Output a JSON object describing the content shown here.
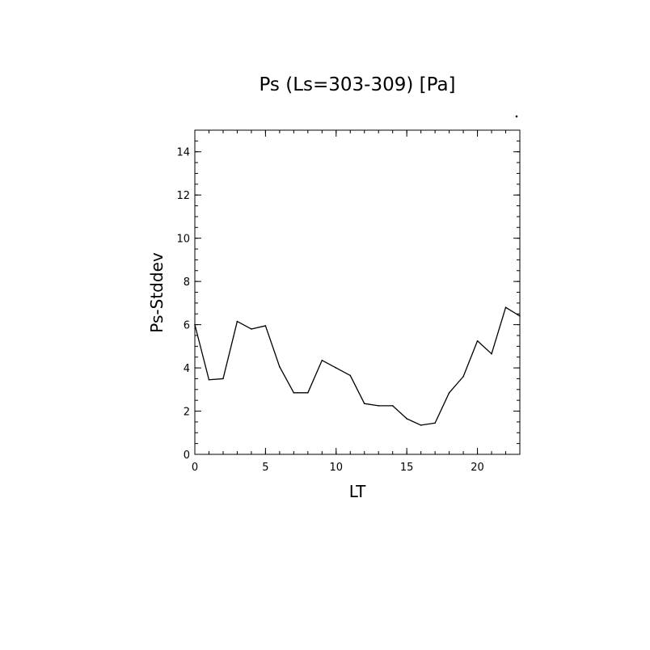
{
  "chart_data": {
    "type": "line",
    "title": "Ps (Ls=303-309) [Pa]",
    "xlabel": "LT",
    "ylabel": "Ps-Stddev",
    "xlim": [
      0,
      23
    ],
    "ylim": [
      0,
      15
    ],
    "x_ticks": [
      0,
      5,
      10,
      15,
      20
    ],
    "y_ticks": [
      0,
      2,
      4,
      6,
      8,
      10,
      12,
      14
    ],
    "x_ticks_text": [
      "0",
      "5",
      "10",
      "15",
      "20"
    ],
    "y_ticks_text": [
      "0",
      "2",
      "4",
      "6",
      "8",
      "10",
      "12",
      "14"
    ],
    "grid": false,
    "series": [
      {
        "color": "#000000",
        "x": [
          0,
          1,
          2,
          3,
          4,
          5,
          6,
          7,
          8,
          9,
          10,
          11,
          12,
          13,
          14,
          15,
          16,
          17,
          18,
          19,
          20,
          21,
          22,
          23
        ],
        "y": [
          6.0,
          3.45,
          3.5,
          6.15,
          5.8,
          5.95,
          4.05,
          2.85,
          2.85,
          4.35,
          4.0,
          3.65,
          2.35,
          2.25,
          2.25,
          1.65,
          1.35,
          1.45,
          2.85,
          3.6,
          5.25,
          4.65,
          6.8,
          6.4
        ]
      }
    ]
  }
}
